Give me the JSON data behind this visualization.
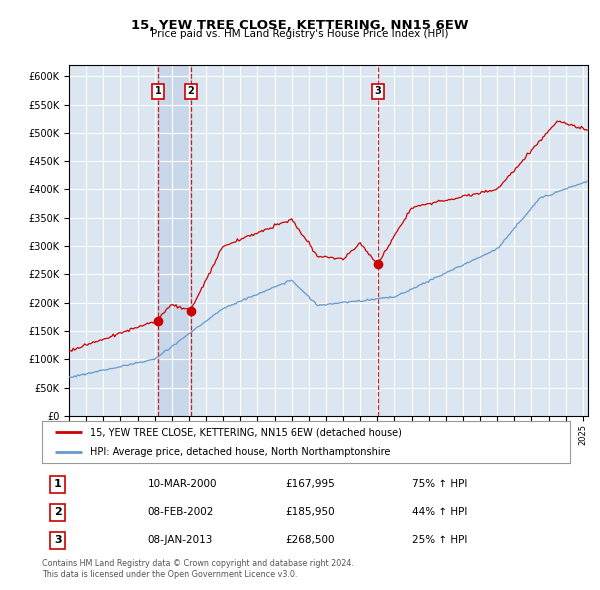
{
  "title": "15, YEW TREE CLOSE, KETTERING, NN15 6EW",
  "subtitle": "Price paid vs. HM Land Registry's House Price Index (HPI)",
  "ylim": [
    0,
    620000
  ],
  "yticks": [
    0,
    50000,
    100000,
    150000,
    200000,
    250000,
    300000,
    350000,
    400000,
    450000,
    500000,
    550000,
    600000
  ],
  "xlim_start": 1995.0,
  "xlim_end": 2025.3,
  "red_color": "#cc0000",
  "blue_color": "#6699cc",
  "plot_bg_color": "#dce6f1",
  "grid_color": "#ffffff",
  "span_color": "#c5d5e8",
  "sale_events": [
    {
      "label": "1",
      "year": 2000.19,
      "price": 167995
    },
    {
      "label": "2",
      "year": 2002.1,
      "price": 185950
    },
    {
      "label": "3",
      "year": 2013.03,
      "price": 268500
    }
  ],
  "legend_red": "15, YEW TREE CLOSE, KETTERING, NN15 6EW (detached house)",
  "legend_blue": "HPI: Average price, detached house, North Northamptonshire",
  "footer": "Contains HM Land Registry data © Crown copyright and database right 2024.\nThis data is licensed under the Open Government Licence v3.0.",
  "table_rows": [
    [
      "1",
      "10-MAR-2000",
      "£167,995",
      "75% ↑ HPI"
    ],
    [
      "2",
      "08-FEB-2002",
      "£185,950",
      "44% ↑ HPI"
    ],
    [
      "3",
      "08-JAN-2013",
      "£268,500",
      "25% ↑ HPI"
    ]
  ]
}
